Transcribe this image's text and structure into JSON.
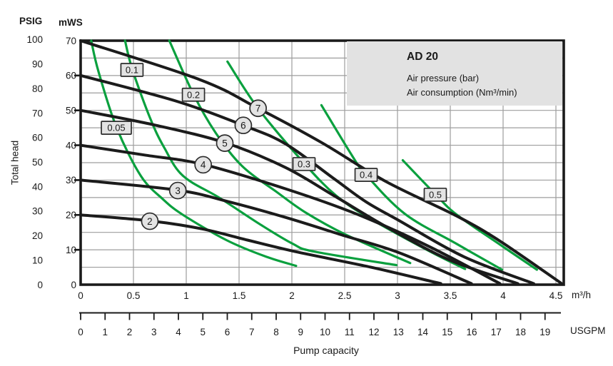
{
  "header": {
    "psig": "PSIG",
    "mws": "mWS"
  },
  "labels": {
    "y_axis_title": "Total head",
    "x_axis_title": "Pump capacity",
    "m3h_unit": "m³/h",
    "usgpm_unit": "USGPM"
  },
  "legend": {
    "title": "AD 20",
    "line1": "Air pressure (bar)",
    "line2": "Air consumption (Nm³/min)"
  },
  "chart_data": {
    "type": "line",
    "title": "AD 20",
    "x_axis": {
      "label": "Pump capacity",
      "unit_primary": "m³/h",
      "ticks_m3h": [
        "0",
        "0.5",
        "1",
        "1.5",
        "2",
        "2.5",
        "3",
        "3.5",
        "4",
        "4.5"
      ],
      "range_m3h": [
        0,
        4.5
      ],
      "unit_secondary": "USGPM",
      "ticks_usgpm": [
        0,
        1,
        2,
        3,
        4,
        5,
        6,
        7,
        8,
        9,
        10,
        11,
        12,
        13,
        14,
        15,
        16,
        17,
        18,
        19
      ]
    },
    "y_axis": {
      "label": "Total head",
      "unit_primary": "mWS",
      "ticks_mws": [
        0,
        10,
        20,
        30,
        40,
        50,
        60,
        70
      ],
      "range_mws": [
        0,
        70
      ],
      "unit_secondary": "PSIG",
      "ticks_psig": [
        0,
        10,
        20,
        30,
        40,
        50,
        60,
        70,
        80,
        90,
        100
      ]
    },
    "grid": {
      "vertical_step_m3h": 0.5,
      "horizontal_step_mws": 5
    },
    "series_groups": [
      {
        "group": "Air pressure (bar)",
        "style": "circle-label",
        "color": "#1b1b1b",
        "series": [
          {
            "label": "2",
            "label_at": [
              0.655,
              18.2
            ],
            "points": [
              [
                0,
                20
              ],
              [
                0.66,
                18.3
              ],
              [
                1.15,
                16
              ],
              [
                1.58,
                12.8
              ],
              [
                2.03,
                9.5
              ],
              [
                2.75,
                5
              ],
              [
                3.41,
                0.3
              ]
            ]
          },
          {
            "label": "3",
            "label_at": [
              0.92,
              27.0
            ],
            "points": [
              [
                0,
                30
              ],
              [
                0.92,
                27.1
              ],
              [
                1.4,
                23.8
              ],
              [
                1.94,
                19.3
              ],
              [
                2.48,
                14.2
              ],
              [
                3.02,
                9.1
              ],
              [
                3.7,
                0.3
              ]
            ]
          },
          {
            "label": "4",
            "label_at": [
              1.16,
              34.4
            ],
            "points": [
              [
                0,
                40
              ],
              [
                0.6,
                37.2
              ],
              [
                1.16,
                34.5
              ],
              [
                1.94,
                27.5
              ],
              [
                2.61,
                20.3
              ],
              [
                3.29,
                11.1
              ],
              [
                3.97,
                0.3
              ]
            ]
          },
          {
            "label": "5",
            "label_at": [
              1.365,
              40.6
            ],
            "points": [
              [
                0,
                50
              ],
              [
                0.7,
                45.8
              ],
              [
                1.37,
                40.7
              ],
              [
                1.94,
                33.6
              ],
              [
                2.4,
                25.5
              ],
              [
                2.9,
                16.5
              ],
              [
                3.5,
                7
              ],
              [
                4.14,
                0.3
              ]
            ]
          },
          {
            "label": "6",
            "label_at": [
              1.54,
              45.7
            ],
            "points": [
              [
                0,
                60
              ],
              [
                0.9,
                52.7
              ],
              [
                1.54,
                45.7
              ],
              [
                1.94,
                40.4
              ],
              [
                2.39,
                30.6
              ],
              [
                2.7,
                23.8
              ],
              [
                3.02,
                18.3
              ],
              [
                3.63,
                8
              ],
              [
                4.29,
                0.3
              ]
            ]
          },
          {
            "label": "7",
            "label_at": [
              1.68,
              50.6
            ],
            "points": [
              [
                0,
                70
              ],
              [
                1.13,
                58.8
              ],
              [
                1.68,
                50.6
              ],
              [
                2.28,
                40.8
              ],
              [
                2.89,
                29.6
              ],
              [
                3.56,
                19.7
              ],
              [
                3.97,
                12.5
              ],
              [
                4.55,
                0.4
              ]
            ]
          }
        ]
      },
      {
        "group": "Air consumption (Nm³/min)",
        "style": "box-label",
        "color": "#0aa03e",
        "series": [
          {
            "label": "0.05",
            "label_at": [
              0.338,
              45.0
            ],
            "points": [
              [
                0.1,
                70
              ],
              [
                0.17,
                61
              ],
              [
                0.34,
                45.1
              ],
              [
                0.57,
                31.2
              ],
              [
                0.78,
                24.5
              ],
              [
                0.97,
                20
              ],
              [
                1.38,
                12.8
              ],
              [
                1.74,
                8.2
              ],
              [
                2.04,
                5.4
              ]
            ]
          },
          {
            "label": "0.1",
            "label_at": [
              0.486,
              61.6
            ],
            "points": [
              [
                0.42,
                70
              ],
              [
                0.49,
                61.7
              ],
              [
                0.66,
                47.6
              ],
              [
                0.79,
                39.4
              ],
              [
                0.97,
                31.2
              ],
              [
                1.32,
                24.8
              ],
              [
                1.72,
                16.9
              ],
              [
                2.01,
                11.7
              ],
              [
                2.21,
                9.5
              ],
              [
                2.99,
                5.6
              ]
            ]
          },
          {
            "label": "0.2",
            "label_at": [
              1.068,
              54.5
            ],
            "points": [
              [
                0.84,
                70
              ],
              [
                1.07,
                54.5
              ],
              [
                1.28,
                43.5
              ],
              [
                1.53,
                34
              ],
              [
                1.86,
                26.5
              ],
              [
                2.13,
                20.7
              ],
              [
                2.5,
                14.5
              ],
              [
                3.12,
                6.2
              ]
            ]
          },
          {
            "label": "0.3",
            "label_at": [
              2.115,
              34.6
            ],
            "points": [
              [
                1.39,
                64
              ],
              [
                1.68,
                50.6
              ],
              [
                2.12,
                34.7
              ],
              [
                2.42,
                25.5
              ],
              [
                2.74,
                19
              ],
              [
                3.29,
                9.8
              ],
              [
                3.64,
                4.5
              ]
            ]
          },
          {
            "label": "0.4",
            "label_at": [
              2.703,
              31.5
            ],
            "points": [
              [
                2.28,
                51.5
              ],
              [
                2.57,
                37
              ],
              [
                2.7,
                31.6
              ],
              [
                3.07,
                20.3
              ],
              [
                3.56,
                11.7
              ],
              [
                3.99,
                4.3
              ]
            ]
          },
          {
            "label": "0.5",
            "label_at": [
              3.358,
              25.8
            ],
            "points": [
              [
                3.05,
                35.7
              ],
              [
                3.36,
                25.9
              ],
              [
                3.56,
                20.1
              ],
              [
                3.97,
                11.5
              ],
              [
                4.32,
                4.3
              ]
            ]
          }
        ]
      }
    ]
  }
}
